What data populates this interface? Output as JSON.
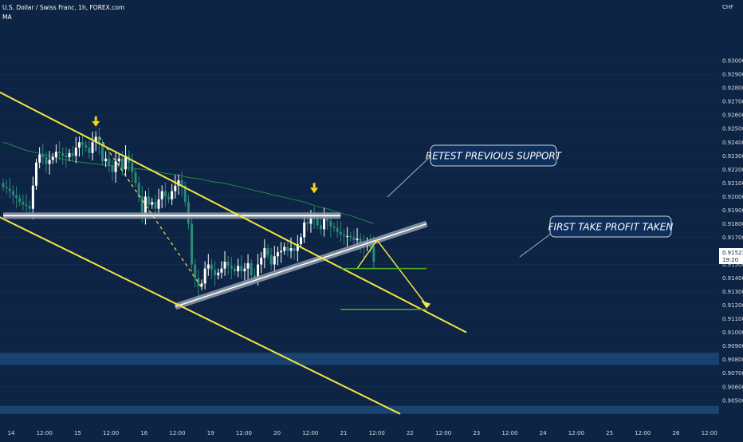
{
  "header": {
    "title": "U.S. Dollar / Swiss Franc, 1h, FOREX.com",
    "indicator": "MA"
  },
  "currency": "CHF",
  "price_box": {
    "price": "0.91523",
    "countdown": "19:20"
  },
  "annotations": {
    "retest": "RETEST PREVIOUS SUPPORT",
    "take_profit": "FIRST TAKE PROFIT TAKEN"
  },
  "colors": {
    "background": "#0d2444",
    "up_candle": "#ffffff",
    "down_candle": "#2a8a7a",
    "ma": "#1f8a4c",
    "trendline": "#f4e542",
    "target": "#4caf2a",
    "zone": "#1c4a78",
    "label_bg": "#0e2f5c"
  },
  "chart_data": {
    "type": "candlestick",
    "symbol": "USDCHF",
    "timeframe": "1h",
    "ylim": [
      0.9044,
      0.934
    ],
    "y_ticks": [
      "0.93000",
      "0.92900",
      "0.92800",
      "0.92700",
      "0.92600",
      "0.92500",
      "0.92400",
      "0.92300",
      "0.92200",
      "0.92100",
      "0.92000",
      "0.91900",
      "0.91800",
      "0.91700",
      "0.91600",
      "0.91500",
      "0.91400",
      "0.91300",
      "0.91200",
      "0.91100",
      "0.91000",
      "0.90900",
      "0.90800",
      "0.90700",
      "0.90600",
      "0.90500"
    ],
    "x_ticks": [
      "14",
      "12:00",
      "15",
      "12:00",
      "16",
      "12:00",
      "19",
      "12:00",
      "20",
      "12:00",
      "21",
      "12:00",
      "22",
      "12:00",
      "23",
      "12:00",
      "24",
      "12:00",
      "25",
      "12:00",
      "26",
      "12:00"
    ],
    "close_series": [
      0.9207,
      0.9206,
      0.9204,
      0.9201,
      0.9199,
      0.9196,
      0.9194,
      0.9193,
      0.9191,
      0.9208,
      0.9225,
      0.9231,
      0.9229,
      0.9224,
      0.9227,
      0.9229,
      0.9233,
      0.9232,
      0.923,
      0.9229,
      0.9232,
      0.923,
      0.9236,
      0.924,
      0.9238,
      0.9236,
      0.9232,
      0.924,
      0.9244,
      0.9239,
      0.9226,
      0.9228,
      0.9223,
      0.9218,
      0.9226,
      0.9228,
      0.922,
      0.923,
      0.9225,
      0.9218,
      0.921,
      0.92,
      0.9186,
      0.92,
      0.9194,
      0.9196,
      0.9191,
      0.9198,
      0.9204,
      0.92,
      0.9198,
      0.9204,
      0.9208,
      0.9212,
      0.9208,
      0.9196,
      0.918,
      0.915,
      0.914,
      0.9134,
      0.9136,
      0.9147,
      0.915,
      0.9146,
      0.9142,
      0.9144,
      0.9147,
      0.9152,
      0.9149,
      0.9147,
      0.9145,
      0.9149,
      0.9145,
      0.9147,
      0.9151,
      0.9142,
      0.914,
      0.915,
      0.9155,
      0.9162,
      0.9157,
      0.915,
      0.9156,
      0.9159,
      0.916,
      0.9163,
      0.916,
      0.9162,
      0.916,
      0.9165,
      0.917,
      0.9181,
      0.918,
      0.9186,
      0.9184,
      0.9179,
      0.9176,
      0.9184,
      0.9182,
      0.9178,
      0.9177,
      0.9174,
      0.9172,
      0.9171,
      0.9171,
      0.917,
      0.9168,
      0.9169,
      0.9165,
      0.9163,
      0.9167,
      0.9163,
      0.9152
    ],
    "ma_series": [
      0.924,
      0.9237,
      0.9234,
      0.9232,
      0.923,
      0.9228,
      0.9226,
      0.9225,
      0.9224,
      0.9223,
      0.9222,
      0.9221,
      0.922,
      0.9219,
      0.9217,
      0.9216,
      0.9214,
      0.9213,
      0.9211,
      0.921,
      0.9208,
      0.9206,
      0.9204,
      0.9202,
      0.92,
      0.9198,
      0.9196,
      0.9193,
      0.9191,
      0.9188,
      0.9186,
      0.9183,
      0.918
    ],
    "markers": [
      {
        "type": "arrow-down",
        "index": 28,
        "price": 0.9252
      },
      {
        "type": "arrow-down",
        "index": 94,
        "price": 0.9203
      }
    ],
    "drawings": {
      "upper_channel": [
        [
          -2,
          0.9278
        ],
        [
          140,
          0.91
        ]
      ],
      "lower_channel": [
        [
          -2,
          0.9186
        ],
        [
          120,
          0.904
        ]
      ],
      "support_zone_band": [
        [
          0,
          0.9186
        ],
        [
          102,
          0.9186
        ]
      ],
      "rising_trendline": [
        [
          52,
          0.9119
        ],
        [
          128,
          0.918
        ]
      ],
      "projection": [
        [
          107,
          0.9147
        ],
        [
          113,
          0.9168
        ],
        [
          128,
          0.912
        ]
      ],
      "dashed_swing": [
        [
          29,
          0.9244
        ],
        [
          60,
          0.9133
        ]
      ],
      "take_profit_line_1": 0.9147,
      "take_profit_line_2": 0.9117
    },
    "zones": [
      [
        0.9076,
        0.9085
      ],
      [
        0.904,
        0.9046
      ]
    ]
  }
}
